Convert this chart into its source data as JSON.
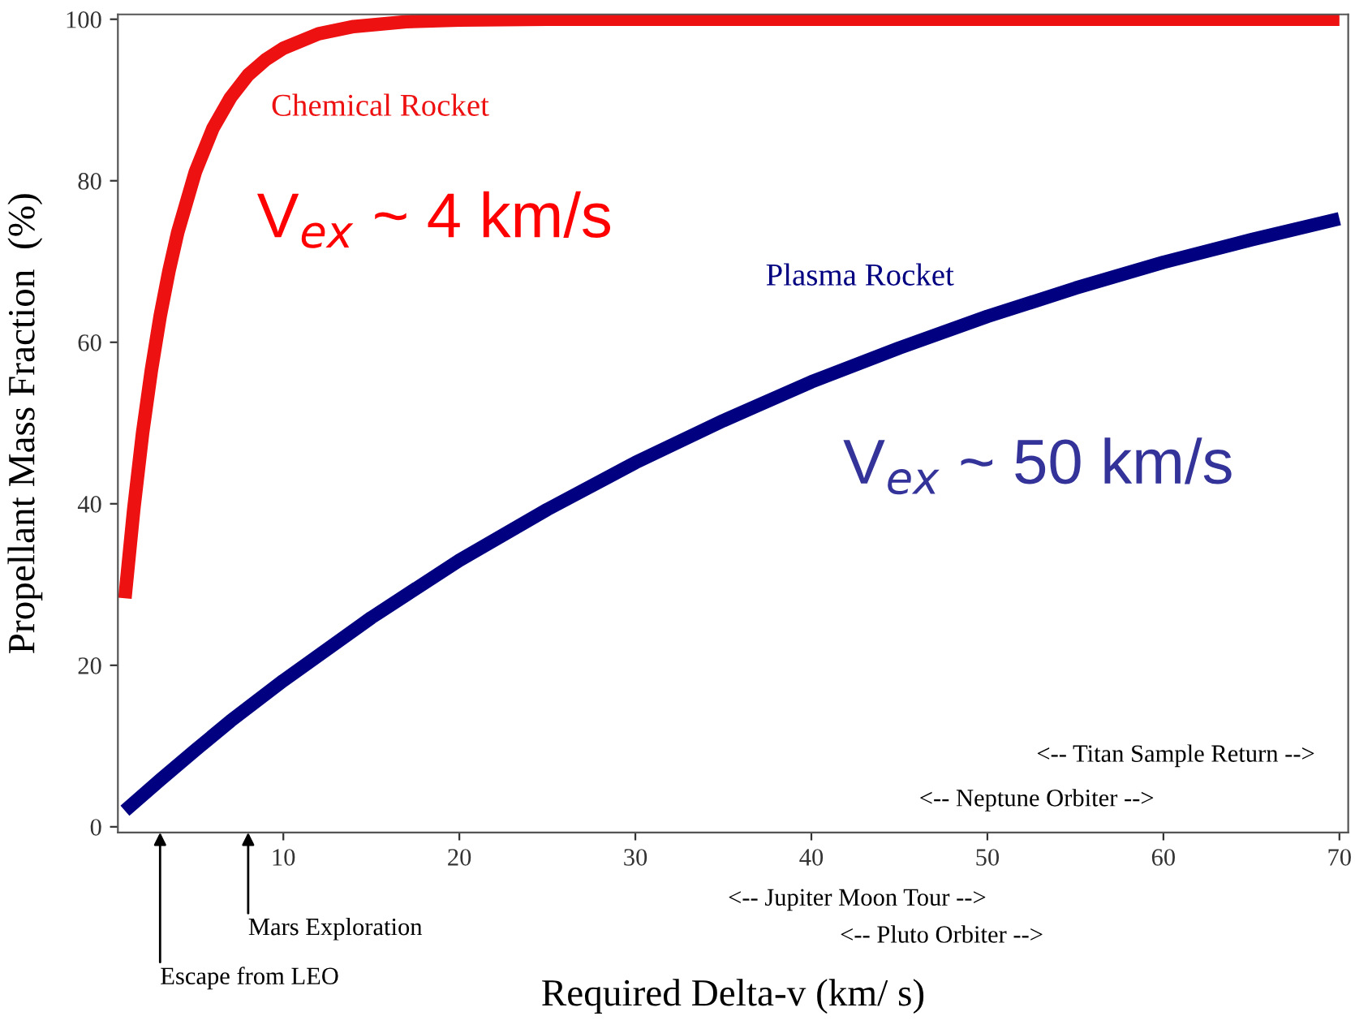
{
  "chart_data": {
    "type": "line",
    "xlabel": "Required Delta-v (km/ s)",
    "ylabel": "Propellant Mass Fraction  (%)",
    "xlim": [
      0.6,
      70.5
    ],
    "ylim": [
      -0.7,
      100.6
    ],
    "xticks": [
      10,
      20,
      30,
      40,
      50,
      60,
      70
    ],
    "yticks": [
      0,
      20,
      40,
      60,
      80,
      100
    ],
    "grid": false,
    "marker": "none",
    "line_style": "solid",
    "series": [
      {
        "name": "Chemical Rocket",
        "color": "#ee1111",
        "x": [
          1,
          1.5,
          2,
          2.5,
          3,
          3.5,
          4,
          5,
          6,
          7,
          8,
          9,
          10,
          12,
          14,
          17,
          20,
          25,
          30,
          40,
          50,
          60,
          70
        ],
        "values": [
          28.3,
          39.3,
          48.7,
          56.5,
          63.2,
          68.8,
          73.6,
          81.1,
          86.5,
          90.3,
          93.1,
          95.0,
          96.4,
          98.2,
          99.1,
          99.7,
          99.9,
          100,
          100,
          100,
          100,
          100,
          100
        ]
      },
      {
        "name": "Plasma Rocket",
        "color": "#000080",
        "x": [
          1,
          3,
          5,
          7,
          10,
          15,
          20,
          25,
          30,
          35,
          40,
          45,
          50,
          55,
          60,
          65,
          70
        ],
        "values": [
          2.0,
          5.8,
          9.5,
          13.1,
          18.1,
          25.9,
          33.0,
          39.3,
          45.1,
          50.3,
          55.1,
          59.3,
          63.2,
          66.7,
          69.9,
          72.7,
          75.3
        ]
      }
    ],
    "annotations": [
      "V$_{ex}$ ~ 4 km/s",
      "V$_{ex}$ ~ 50 km/s",
      "<-- Titan Sample Return -->",
      "<-- Neptune Orbiter -->",
      "<-- Jupiter Moon Tour -->",
      "<-- Pluto Orbiter -->",
      "Mars Exploration",
      "Escape from LEO"
    ]
  }
}
